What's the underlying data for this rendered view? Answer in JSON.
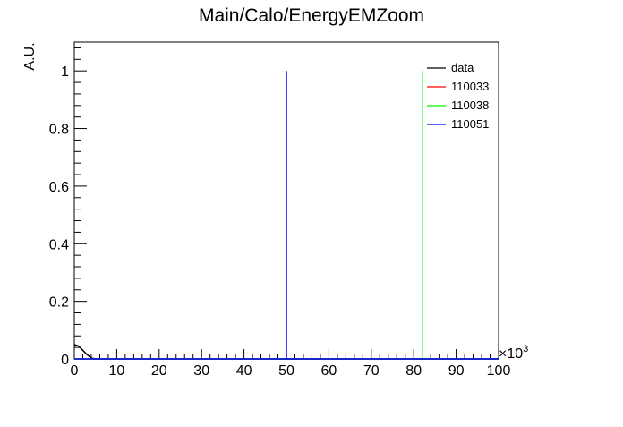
{
  "chart_data": {
    "type": "line",
    "title": "Main/Calo/EnergyEMZoom",
    "xlabel": "",
    "ylabel": "A.U.",
    "x_multiplier_label": "×10",
    "x_multiplier_exponent": "3",
    "xlim": [
      0,
      100
    ],
    "ylim": [
      0,
      1.1
    ],
    "x_ticks": [
      0,
      10,
      20,
      30,
      40,
      50,
      60,
      70,
      80,
      90,
      100
    ],
    "x_tick_labels": [
      "0",
      "10",
      "20",
      "30",
      "40",
      "50",
      "60",
      "70",
      "80",
      "90",
      "100"
    ],
    "y_ticks": [
      0,
      0.2,
      0.4,
      0.6,
      0.8,
      1
    ],
    "y_tick_labels": [
      "0",
      "0.2",
      "0.4",
      "0.6",
      "0.8",
      "1"
    ],
    "grid": false,
    "legend_position": "top-right",
    "series": [
      {
        "name": "data",
        "color": "#000000",
        "points": [
          [
            0,
            0.05
          ],
          [
            1,
            0.045
          ],
          [
            2,
            0.03
          ],
          [
            3,
            0.015
          ],
          [
            4,
            0.003
          ],
          [
            5,
            0
          ],
          [
            100,
            0
          ]
        ]
      },
      {
        "name": "110033",
        "color": "#ff0000",
        "points": [
          [
            0,
            0
          ],
          [
            100,
            0
          ]
        ]
      },
      {
        "name": "110038",
        "color": "#00ff00",
        "points": [
          [
            0,
            0
          ],
          [
            82,
            0
          ],
          [
            82,
            1
          ],
          [
            82,
            0
          ],
          [
            100,
            0
          ]
        ]
      },
      {
        "name": "110051",
        "color": "#0000ff",
        "points": [
          [
            0,
            0
          ],
          [
            50,
            0
          ],
          [
            50,
            1
          ],
          [
            50,
            0
          ],
          [
            100,
            0
          ]
        ]
      }
    ]
  }
}
